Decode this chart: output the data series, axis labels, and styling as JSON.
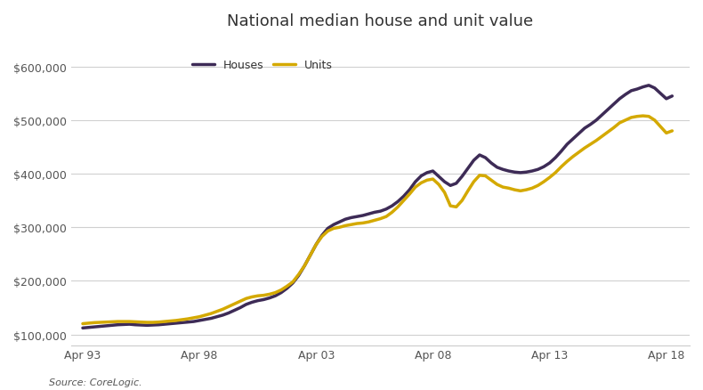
{
  "title": "National median house and unit value",
  "source_text": "Source: CoreLogic.",
  "house_color": "#3d2b56",
  "unit_color": "#d4a900",
  "line_width": 2.5,
  "ylim": [
    80000,
    650000
  ],
  "yticks": [
    100000,
    200000,
    300000,
    400000,
    500000,
    600000
  ],
  "xtick_labels": [
    "Apr 93",
    "Apr 98",
    "Apr 03",
    "Apr 08",
    "Apr 13",
    "Apr 18"
  ],
  "xtick_positions": [
    1993,
    1998,
    2003,
    2008,
    2013,
    2018
  ],
  "xlim": [
    1992.5,
    2019.0
  ],
  "legend_labels": [
    "Houses",
    "Units"
  ],
  "houses_years": [
    1993.0,
    1993.25,
    1993.5,
    1993.75,
    1994.0,
    1994.25,
    1994.5,
    1994.75,
    1995.0,
    1995.25,
    1995.5,
    1995.75,
    1996.0,
    1996.25,
    1996.5,
    1996.75,
    1997.0,
    1997.25,
    1997.5,
    1997.75,
    1998.0,
    1998.25,
    1998.5,
    1998.75,
    1999.0,
    1999.25,
    1999.5,
    1999.75,
    2000.0,
    2000.25,
    2000.5,
    2000.75,
    2001.0,
    2001.25,
    2001.5,
    2001.75,
    2002.0,
    2002.25,
    2002.5,
    2002.75,
    2003.0,
    2003.25,
    2003.5,
    2003.75,
    2004.0,
    2004.25,
    2004.5,
    2004.75,
    2005.0,
    2005.25,
    2005.5,
    2005.75,
    2006.0,
    2006.25,
    2006.5,
    2006.75,
    2007.0,
    2007.25,
    2007.5,
    2007.75,
    2008.0,
    2008.25,
    2008.5,
    2008.75,
    2009.0,
    2009.25,
    2009.5,
    2009.75,
    2010.0,
    2010.25,
    2010.5,
    2010.75,
    2011.0,
    2011.25,
    2011.5,
    2011.75,
    2012.0,
    2012.25,
    2012.5,
    2012.75,
    2013.0,
    2013.25,
    2013.5,
    2013.75,
    2014.0,
    2014.25,
    2014.5,
    2014.75,
    2015.0,
    2015.25,
    2015.5,
    2015.75,
    2016.0,
    2016.25,
    2016.5,
    2016.75,
    2017.0,
    2017.25,
    2017.5,
    2017.75,
    2018.0,
    2018.25
  ],
  "houses_values": [
    112000,
    113000,
    114000,
    115000,
    116000,
    117000,
    118000,
    118500,
    119000,
    118000,
    117500,
    117000,
    117500,
    118000,
    119000,
    120000,
    121000,
    122000,
    123000,
    124000,
    126000,
    128000,
    130000,
    133000,
    136000,
    140000,
    145000,
    150000,
    156000,
    160000,
    163000,
    165000,
    168000,
    172000,
    178000,
    186000,
    196000,
    210000,
    228000,
    248000,
    268000,
    285000,
    298000,
    305000,
    310000,
    315000,
    318000,
    320000,
    322000,
    325000,
    328000,
    330000,
    334000,
    340000,
    348000,
    358000,
    370000,
    385000,
    396000,
    402000,
    405000,
    395000,
    385000,
    378000,
    382000,
    395000,
    410000,
    425000,
    435000,
    430000,
    420000,
    412000,
    408000,
    405000,
    403000,
    402000,
    403000,
    405000,
    408000,
    413000,
    420000,
    430000,
    442000,
    455000,
    465000,
    475000,
    485000,
    492000,
    500000,
    510000,
    520000,
    530000,
    540000,
    548000,
    555000,
    558000,
    562000,
    565000,
    560000,
    550000,
    540000,
    545000
  ],
  "units_years": [
    1993.0,
    1993.25,
    1993.5,
    1993.75,
    1994.0,
    1994.25,
    1994.5,
    1994.75,
    1995.0,
    1995.25,
    1995.5,
    1995.75,
    1996.0,
    1996.25,
    1996.5,
    1996.75,
    1997.0,
    1997.25,
    1997.5,
    1997.75,
    1998.0,
    1998.25,
    1998.5,
    1998.75,
    1999.0,
    1999.25,
    1999.5,
    1999.75,
    2000.0,
    2000.25,
    2000.5,
    2000.75,
    2001.0,
    2001.25,
    2001.5,
    2001.75,
    2002.0,
    2002.25,
    2002.5,
    2002.75,
    2003.0,
    2003.25,
    2003.5,
    2003.75,
    2004.0,
    2004.25,
    2004.5,
    2004.75,
    2005.0,
    2005.25,
    2005.5,
    2005.75,
    2006.0,
    2006.25,
    2006.5,
    2006.75,
    2007.0,
    2007.25,
    2007.5,
    2007.75,
    2008.0,
    2008.25,
    2008.5,
    2008.75,
    2009.0,
    2009.25,
    2009.5,
    2009.75,
    2010.0,
    2010.25,
    2010.5,
    2010.75,
    2011.0,
    2011.25,
    2011.5,
    2011.75,
    2012.0,
    2012.25,
    2012.5,
    2012.75,
    2013.0,
    2013.25,
    2013.5,
    2013.75,
    2014.0,
    2014.25,
    2014.5,
    2014.75,
    2015.0,
    2015.25,
    2015.5,
    2015.75,
    2016.0,
    2016.25,
    2016.5,
    2016.75,
    2017.0,
    2017.25,
    2017.5,
    2017.75,
    2018.0,
    2018.25
  ],
  "units_values": [
    120000,
    121000,
    122000,
    122500,
    123000,
    123500,
    124000,
    124000,
    124000,
    123500,
    123000,
    122500,
    122500,
    123000,
    124000,
    125000,
    126000,
    127500,
    129000,
    131000,
    133000,
    136000,
    139000,
    143000,
    147000,
    152000,
    157000,
    162000,
    167000,
    170000,
    172000,
    173000,
    175000,
    178000,
    183000,
    190000,
    198000,
    212000,
    228000,
    248000,
    268000,
    283000,
    293000,
    298000,
    300000,
    303000,
    305000,
    307000,
    308000,
    310000,
    313000,
    316000,
    320000,
    328000,
    338000,
    350000,
    362000,
    375000,
    383000,
    388000,
    390000,
    380000,
    365000,
    340000,
    338000,
    350000,
    368000,
    385000,
    397000,
    396000,
    388000,
    380000,
    375000,
    373000,
    370000,
    368000,
    370000,
    373000,
    378000,
    385000,
    393000,
    402000,
    413000,
    423000,
    432000,
    440000,
    448000,
    455000,
    462000,
    470000,
    478000,
    486000,
    495000,
    500000,
    505000,
    507000,
    508000,
    507000,
    500000,
    488000,
    476000,
    480000
  ]
}
